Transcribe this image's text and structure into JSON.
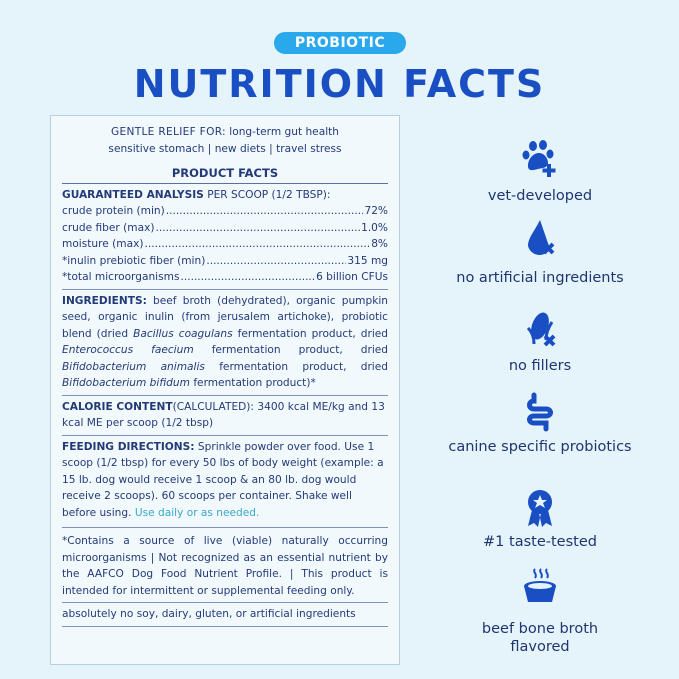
{
  "badge": "PROBIOTIC",
  "title": "NUTRITION FACTS",
  "panel": {
    "relief_label": "GENTLE RELIEF FOR:",
    "relief_line1": "long-term gut health",
    "relief_line2": "sensitive stomach | new diets | travel stress",
    "product_facts": "PRODUCT FACTS",
    "ga_label": "GUARANTEED ANALYSIS",
    "ga_suffix": "PER SCOOP (1/2 TBSP):",
    "analysis": [
      {
        "name": "crude protein (min)",
        "value": "72%"
      },
      {
        "name": "crude fiber (max)",
        "value": "1.0%"
      },
      {
        "name": "moisture (max)",
        "value": "8%"
      },
      {
        "name": "*inulin prebiotic fiber (min)",
        "value": "315 mg"
      },
      {
        "name": "*total microorganisms",
        "value": "6 billion CFUs"
      }
    ],
    "ingredients_label": "INGREDIENTS:",
    "ingredients": {
      "a": "beef broth (dehydrated), organic pumpkin seed, organic inulin (from jerusalem artichoke), probiotic blend (dried ",
      "b": "Bacillus coagulans",
      "c": " fermentation product, dried ",
      "d": "Enterococcus faecium",
      "e": " fermentation product, dried ",
      "f": "Bifidobacterium animalis",
      "g": " fermentation product, dried ",
      "h": "Bifidobacterium bifidum",
      "i": " fermentation product)*"
    },
    "calorie_label": "CALORIE CONTENT",
    "calorie_text": "(CALCULATED): 3400 kcal ME/kg and 13 kcal ME per scoop (1/2 tbsp)",
    "feeding_label": "FEEDING DIRECTIONS:",
    "feeding_text": "Sprinkle powder over food. Use 1 scoop (1/2 tbsp) for every 50 lbs of body weight (example: a 15 lb. dog would receive 1 scoop & an 80 lb. dog would receive 2 scoops). 60 scoops per container. Shake well before using.",
    "feeding_highlight": "Use daily or as needed.",
    "disclaimer": "*Contains a source of live (viable) naturally occurring microorganisms | Not recognized as an essential nutrient by the AAFCO Dog Food Nutrient Profile. | This product is intended for intermittent or supplemental feeding only.",
    "free_from": "absolutely no soy, dairy, gluten, or artificial ingredients"
  },
  "features": [
    {
      "icon": "paw-plus-icon",
      "label": "vet-developed"
    },
    {
      "icon": "drop-x-icon",
      "label": "no artificial ingredients"
    },
    {
      "icon": "corn-x-icon",
      "label": "no fillers"
    },
    {
      "icon": "intestine-icon",
      "label": "canine specific probiotics"
    },
    {
      "icon": "award-ribbon-icon",
      "label": "#1 taste-tested"
    },
    {
      "icon": "bowl-steam-icon",
      "label": "beef bone broth flavored"
    }
  ],
  "colors": {
    "accent": "#1a4fc4",
    "badge": "#2aa8ec",
    "text": "#233a78",
    "background": "#e5f4fb"
  }
}
